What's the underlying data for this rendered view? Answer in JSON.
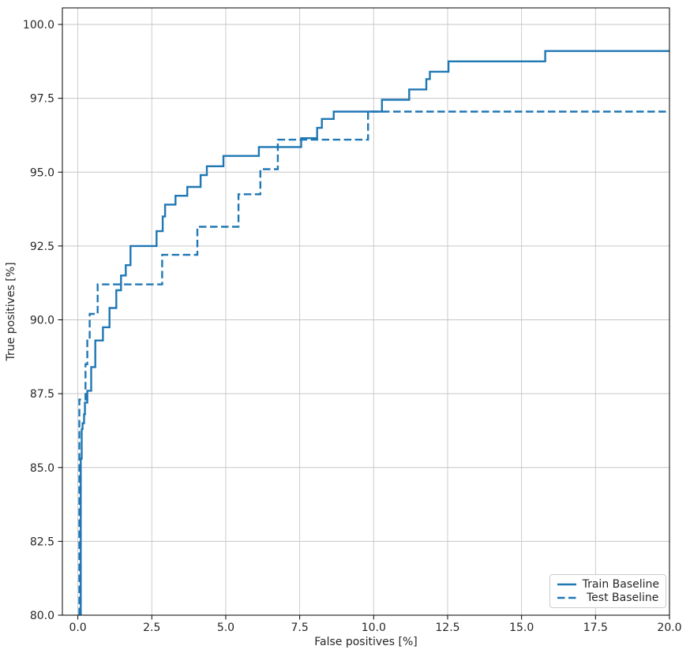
{
  "chart_data": {
    "type": "line",
    "subtype": "step-roc-curve",
    "title": "",
    "xlabel": "False positives [%]",
    "ylabel": "True positives [%]",
    "xlim": [
      -0.52,
      20.0
    ],
    "ylim": [
      80.0,
      100.56
    ],
    "xticks": [
      0.0,
      2.5,
      5.0,
      7.5,
      10.0,
      12.5,
      15.0,
      17.5,
      20.0
    ],
    "yticks": [
      80.0,
      82.5,
      85.0,
      87.5,
      90.0,
      92.5,
      95.0,
      97.5,
      100.0
    ],
    "grid": true,
    "grid_color": "#c6c6c6",
    "axis_color": "#000000",
    "accent_color": "#1f77b4",
    "legend_position": "lower right",
    "series": [
      {
        "name": "Train Baseline",
        "style": "solid",
        "color": "#1f77b4",
        "points": [
          [
            0.1,
            80.0
          ],
          [
            0.1,
            85.3
          ],
          [
            0.13,
            85.3
          ],
          [
            0.13,
            86.3
          ],
          [
            0.16,
            86.3
          ],
          [
            0.16,
            86.5
          ],
          [
            0.21,
            86.5
          ],
          [
            0.21,
            86.8
          ],
          [
            0.24,
            86.8
          ],
          [
            0.24,
            87.2
          ],
          [
            0.32,
            87.2
          ],
          [
            0.32,
            87.6
          ],
          [
            0.45,
            87.6
          ],
          [
            0.45,
            88.4
          ],
          [
            0.59,
            88.4
          ],
          [
            0.59,
            89.3
          ],
          [
            0.85,
            89.3
          ],
          [
            0.85,
            89.75
          ],
          [
            1.07,
            89.75
          ],
          [
            1.07,
            90.4
          ],
          [
            1.3,
            90.4
          ],
          [
            1.3,
            91.0
          ],
          [
            1.46,
            91.0
          ],
          [
            1.46,
            91.5
          ],
          [
            1.62,
            91.5
          ],
          [
            1.62,
            91.85
          ],
          [
            1.78,
            91.85
          ],
          [
            1.78,
            92.5
          ],
          [
            2.66,
            92.5
          ],
          [
            2.66,
            93.0
          ],
          [
            2.87,
            93.0
          ],
          [
            2.87,
            93.5
          ],
          [
            2.95,
            93.5
          ],
          [
            2.95,
            93.9
          ],
          [
            3.3,
            93.9
          ],
          [
            3.3,
            94.2
          ],
          [
            3.7,
            94.2
          ],
          [
            3.7,
            94.5
          ],
          [
            4.15,
            94.5
          ],
          [
            4.15,
            94.9
          ],
          [
            4.36,
            94.9
          ],
          [
            4.36,
            95.2
          ],
          [
            4.92,
            95.2
          ],
          [
            4.92,
            95.55
          ],
          [
            6.12,
            95.55
          ],
          [
            6.12,
            95.85
          ],
          [
            7.55,
            95.85
          ],
          [
            7.55,
            96.15
          ],
          [
            8.09,
            96.15
          ],
          [
            8.09,
            96.5
          ],
          [
            8.25,
            96.5
          ],
          [
            8.25,
            96.8
          ],
          [
            8.65,
            96.8
          ],
          [
            8.65,
            97.05
          ],
          [
            10.28,
            97.05
          ],
          [
            10.28,
            97.45
          ],
          [
            11.2,
            97.45
          ],
          [
            11.2,
            97.8
          ],
          [
            11.78,
            97.8
          ],
          [
            11.78,
            98.15
          ],
          [
            11.9,
            98.15
          ],
          [
            11.9,
            98.4
          ],
          [
            12.53,
            98.4
          ],
          [
            12.53,
            98.75
          ],
          [
            15.8,
            98.75
          ],
          [
            15.8,
            99.1
          ],
          [
            20.0,
            99.1
          ]
        ]
      },
      {
        "name": "Test Baseline",
        "style": "dashed",
        "color": "#1f77b4",
        "points": [
          [
            0.05,
            80.0
          ],
          [
            0.05,
            87.3
          ],
          [
            0.26,
            87.3
          ],
          [
            0.26,
            88.5
          ],
          [
            0.32,
            88.5
          ],
          [
            0.32,
            89.4
          ],
          [
            0.4,
            89.4
          ],
          [
            0.4,
            90.2
          ],
          [
            0.67,
            90.2
          ],
          [
            0.67,
            91.2
          ],
          [
            2.85,
            91.2
          ],
          [
            2.85,
            92.2
          ],
          [
            4.04,
            92.2
          ],
          [
            4.04,
            93.15
          ],
          [
            5.43,
            93.15
          ],
          [
            5.43,
            94.25
          ],
          [
            6.17,
            94.25
          ],
          [
            6.17,
            95.1
          ],
          [
            6.76,
            95.1
          ],
          [
            6.76,
            96.1
          ],
          [
            9.81,
            96.1
          ],
          [
            9.81,
            97.05
          ],
          [
            20.0,
            97.05
          ]
        ]
      }
    ]
  },
  "legend": {
    "items": [
      {
        "label": "Train Baseline",
        "sample": "solid-line"
      },
      {
        "label": "Test Baseline",
        "sample": "dashed-line"
      }
    ]
  }
}
